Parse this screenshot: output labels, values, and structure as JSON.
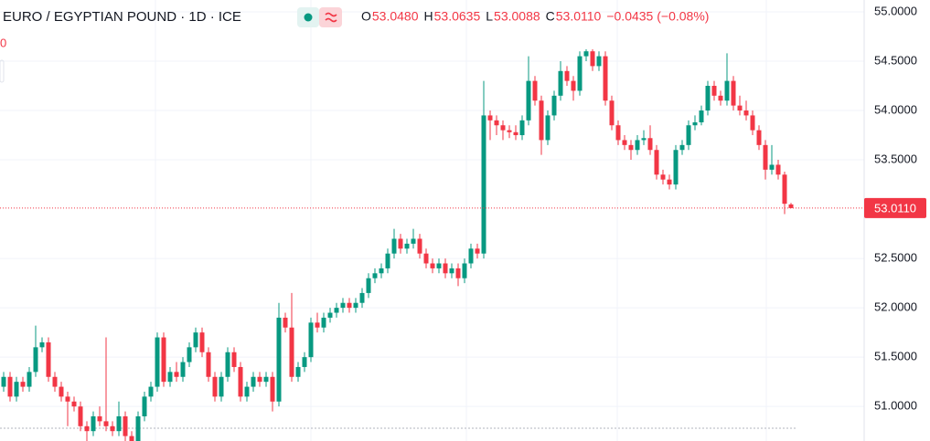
{
  "chart_data": {
    "type": "candlestick",
    "title": "EURO / EGYPTIAN POUND · 1D · ICE",
    "clipped_label": "0",
    "legend": {
      "o": "O",
      "open": "53.0480",
      "h": "H",
      "high": "53.0635",
      "l": "L",
      "low": "53.0088",
      "c": "C",
      "close": "53.0110",
      "change": "−0.0435 (−0.08%)"
    },
    "up_color": "#089981",
    "down_color": "#f23645",
    "grid": true,
    "ylim": [
      50.65,
      55.12
    ],
    "yticks": [
      {
        "value": 55,
        "label": "55.0000"
      },
      {
        "value": 54.5,
        "label": "54.5000"
      },
      {
        "value": 54,
        "label": "54.0000"
      },
      {
        "value": 53.5,
        "label": "53.5000"
      },
      {
        "value": 52.5,
        "label": "52.5000"
      },
      {
        "value": 52,
        "label": "52.0000"
      },
      {
        "value": 51.5,
        "label": "51.5000"
      },
      {
        "value": 51,
        "label": "51.0000"
      }
    ],
    "last_price": {
      "value": 53.011,
      "label": "53.0110"
    },
    "open": [
      51.2,
      51.3,
      51.1,
      51.25,
      51.2,
      51.35,
      51.6,
      51.65,
      51.3,
      51.2,
      51.1,
      51.05,
      51.0,
      50.8,
      50.75,
      50.9,
      50.85,
      50.8,
      50.75,
      50.9,
      50.7,
      50.65,
      50.9,
      51.1,
      51.2,
      51.7,
      51.25,
      51.35,
      51.3,
      51.45,
      51.6,
      51.75,
      51.55,
      51.3,
      51.1,
      51.3,
      51.55,
      51.4,
      51.1,
      51.2,
      51.3,
      51.25,
      51.3,
      51.05,
      51.9,
      51.8,
      51.3,
      51.4,
      51.5,
      51.85,
      51.8,
      51.9,
      51.95,
      52.0,
      52.05,
      52.0,
      52.05,
      52.15,
      52.3,
      52.35,
      52.4,
      52.55,
      52.7,
      52.6,
      52.65,
      52.7,
      52.55,
      52.45,
      52.4,
      52.45,
      52.35,
      52.4,
      52.3,
      52.45,
      52.6,
      52.55,
      53.95,
      53.9,
      53.85,
      53.8,
      53.78,
      53.75,
      53.9,
      54.3,
      54.1,
      53.7,
      53.95,
      54.15,
      54.4,
      54.3,
      54.2,
      54.55,
      54.6,
      54.45,
      54.55,
      54.1,
      53.85,
      53.7,
      53.65,
      53.6,
      53.7,
      53.72,
      53.6,
      53.35,
      53.3,
      53.25,
      53.6,
      53.65,
      53.85,
      53.88,
      54.0,
      54.25,
      54.15,
      54.1,
      54.3,
      54.05,
      54.0,
      53.95,
      53.8,
      53.65,
      53.4,
      53.45,
      53.35,
      53.048
    ],
    "high": [
      51.35,
      51.35,
      51.3,
      51.3,
      51.4,
      51.82,
      51.7,
      51.7,
      51.35,
      51.25,
      51.15,
      51.1,
      51.05,
      50.85,
      50.95,
      51.0,
      51.7,
      50.85,
      51.05,
      50.95,
      50.75,
      50.95,
      51.15,
      51.25,
      51.75,
      51.75,
      51.4,
      51.45,
      51.5,
      51.65,
      51.8,
      51.8,
      51.6,
      51.35,
      51.35,
      51.6,
      51.6,
      51.45,
      51.25,
      51.35,
      51.35,
      51.35,
      51.35,
      52.05,
      51.95,
      52.15,
      51.45,
      51.55,
      51.9,
      51.95,
      51.95,
      52.0,
      52.05,
      52.1,
      52.1,
      52.1,
      52.2,
      52.35,
      52.4,
      52.45,
      52.6,
      52.8,
      52.75,
      52.7,
      52.8,
      52.75,
      52.6,
      52.5,
      52.5,
      52.5,
      52.45,
      52.45,
      52.5,
      52.65,
      52.65,
      54.3,
      54.0,
      53.95,
      53.9,
      53.85,
      53.85,
      53.95,
      54.55,
      54.35,
      54.15,
      54.0,
      54.2,
      54.5,
      54.45,
      54.35,
      54.6,
      54.62,
      54.62,
      54.6,
      54.6,
      54.15,
      53.9,
      53.75,
      53.7,
      53.75,
      53.8,
      53.85,
      53.65,
      53.4,
      53.35,
      53.65,
      53.7,
      53.9,
      53.95,
      54.05,
      54.3,
      54.3,
      54.2,
      54.58,
      54.35,
      54.15,
      54.1,
      54.0,
      53.85,
      53.7,
      53.65,
      53.5,
      53.38,
      53.0635
    ],
    "low": [
      51.15,
      51.05,
      51.05,
      51.15,
      51.15,
      51.3,
      51.55,
      51.25,
      51.15,
      51.05,
      50.8,
      50.95,
      50.75,
      50.65,
      50.7,
      50.8,
      50.75,
      50.7,
      50.7,
      50.65,
      50.6,
      50.6,
      50.85,
      51.05,
      51.15,
      51.2,
      51.2,
      51.25,
      51.25,
      51.4,
      51.55,
      51.5,
      51.25,
      51.05,
      51.05,
      51.25,
      51.35,
      51.05,
      51.05,
      51.15,
      51.2,
      51.2,
      50.95,
      51.0,
      51.75,
      51.25,
      51.25,
      51.35,
      51.45,
      51.75,
      51.75,
      51.85,
      51.9,
      51.95,
      51.95,
      51.95,
      52.0,
      52.1,
      52.25,
      52.3,
      52.35,
      52.5,
      52.55,
      52.55,
      52.6,
      52.5,
      52.4,
      52.35,
      52.35,
      52.3,
      52.3,
      52.22,
      52.25,
      52.4,
      52.5,
      52.5,
      53.7,
      53.75,
      53.7,
      53.72,
      53.7,
      53.7,
      53.85,
      54.05,
      53.55,
      53.65,
      53.9,
      54.1,
      54.25,
      54.1,
      54.15,
      54.5,
      54.4,
      54.4,
      54.05,
      53.8,
      53.65,
      53.6,
      53.5,
      53.55,
      53.65,
      53.55,
      53.3,
      53.25,
      53.2,
      53.2,
      53.55,
      53.6,
      53.8,
      53.85,
      53.95,
      54.1,
      54.05,
      54.05,
      54.0,
      53.95,
      53.9,
      53.75,
      53.6,
      53.3,
      53.35,
      53.3,
      52.95,
      53.0088
    ],
    "close": [
      51.3,
      51.1,
      51.25,
      51.2,
      51.35,
      51.6,
      51.65,
      51.3,
      51.2,
      51.1,
      51.05,
      51.0,
      50.8,
      50.75,
      50.9,
      50.85,
      50.8,
      50.75,
      50.9,
      50.7,
      50.65,
      50.9,
      51.1,
      51.2,
      51.7,
      51.25,
      51.35,
      51.3,
      51.45,
      51.6,
      51.75,
      51.55,
      51.3,
      51.1,
      51.3,
      51.55,
      51.4,
      51.1,
      51.2,
      51.3,
      51.25,
      51.3,
      51.05,
      51.9,
      51.8,
      51.3,
      51.4,
      51.5,
      51.85,
      51.8,
      51.9,
      51.95,
      52.0,
      52.05,
      52.0,
      52.05,
      52.15,
      52.3,
      52.35,
      52.4,
      52.55,
      52.7,
      52.6,
      52.65,
      52.7,
      52.55,
      52.45,
      52.4,
      52.45,
      52.35,
      52.4,
      52.3,
      52.45,
      52.6,
      52.55,
      53.95,
      53.9,
      53.85,
      53.8,
      53.78,
      53.75,
      53.9,
      54.3,
      54.1,
      53.7,
      53.95,
      54.15,
      54.4,
      54.3,
      54.2,
      54.55,
      54.6,
      54.45,
      54.55,
      54.1,
      53.85,
      53.7,
      53.65,
      53.6,
      53.7,
      53.72,
      53.6,
      53.35,
      53.3,
      53.25,
      53.6,
      53.65,
      53.85,
      53.88,
      54.0,
      54.25,
      54.15,
      54.1,
      54.3,
      54.05,
      54.0,
      53.95,
      53.8,
      53.65,
      53.4,
      53.45,
      53.35,
      53.0545,
      53.011
    ]
  }
}
